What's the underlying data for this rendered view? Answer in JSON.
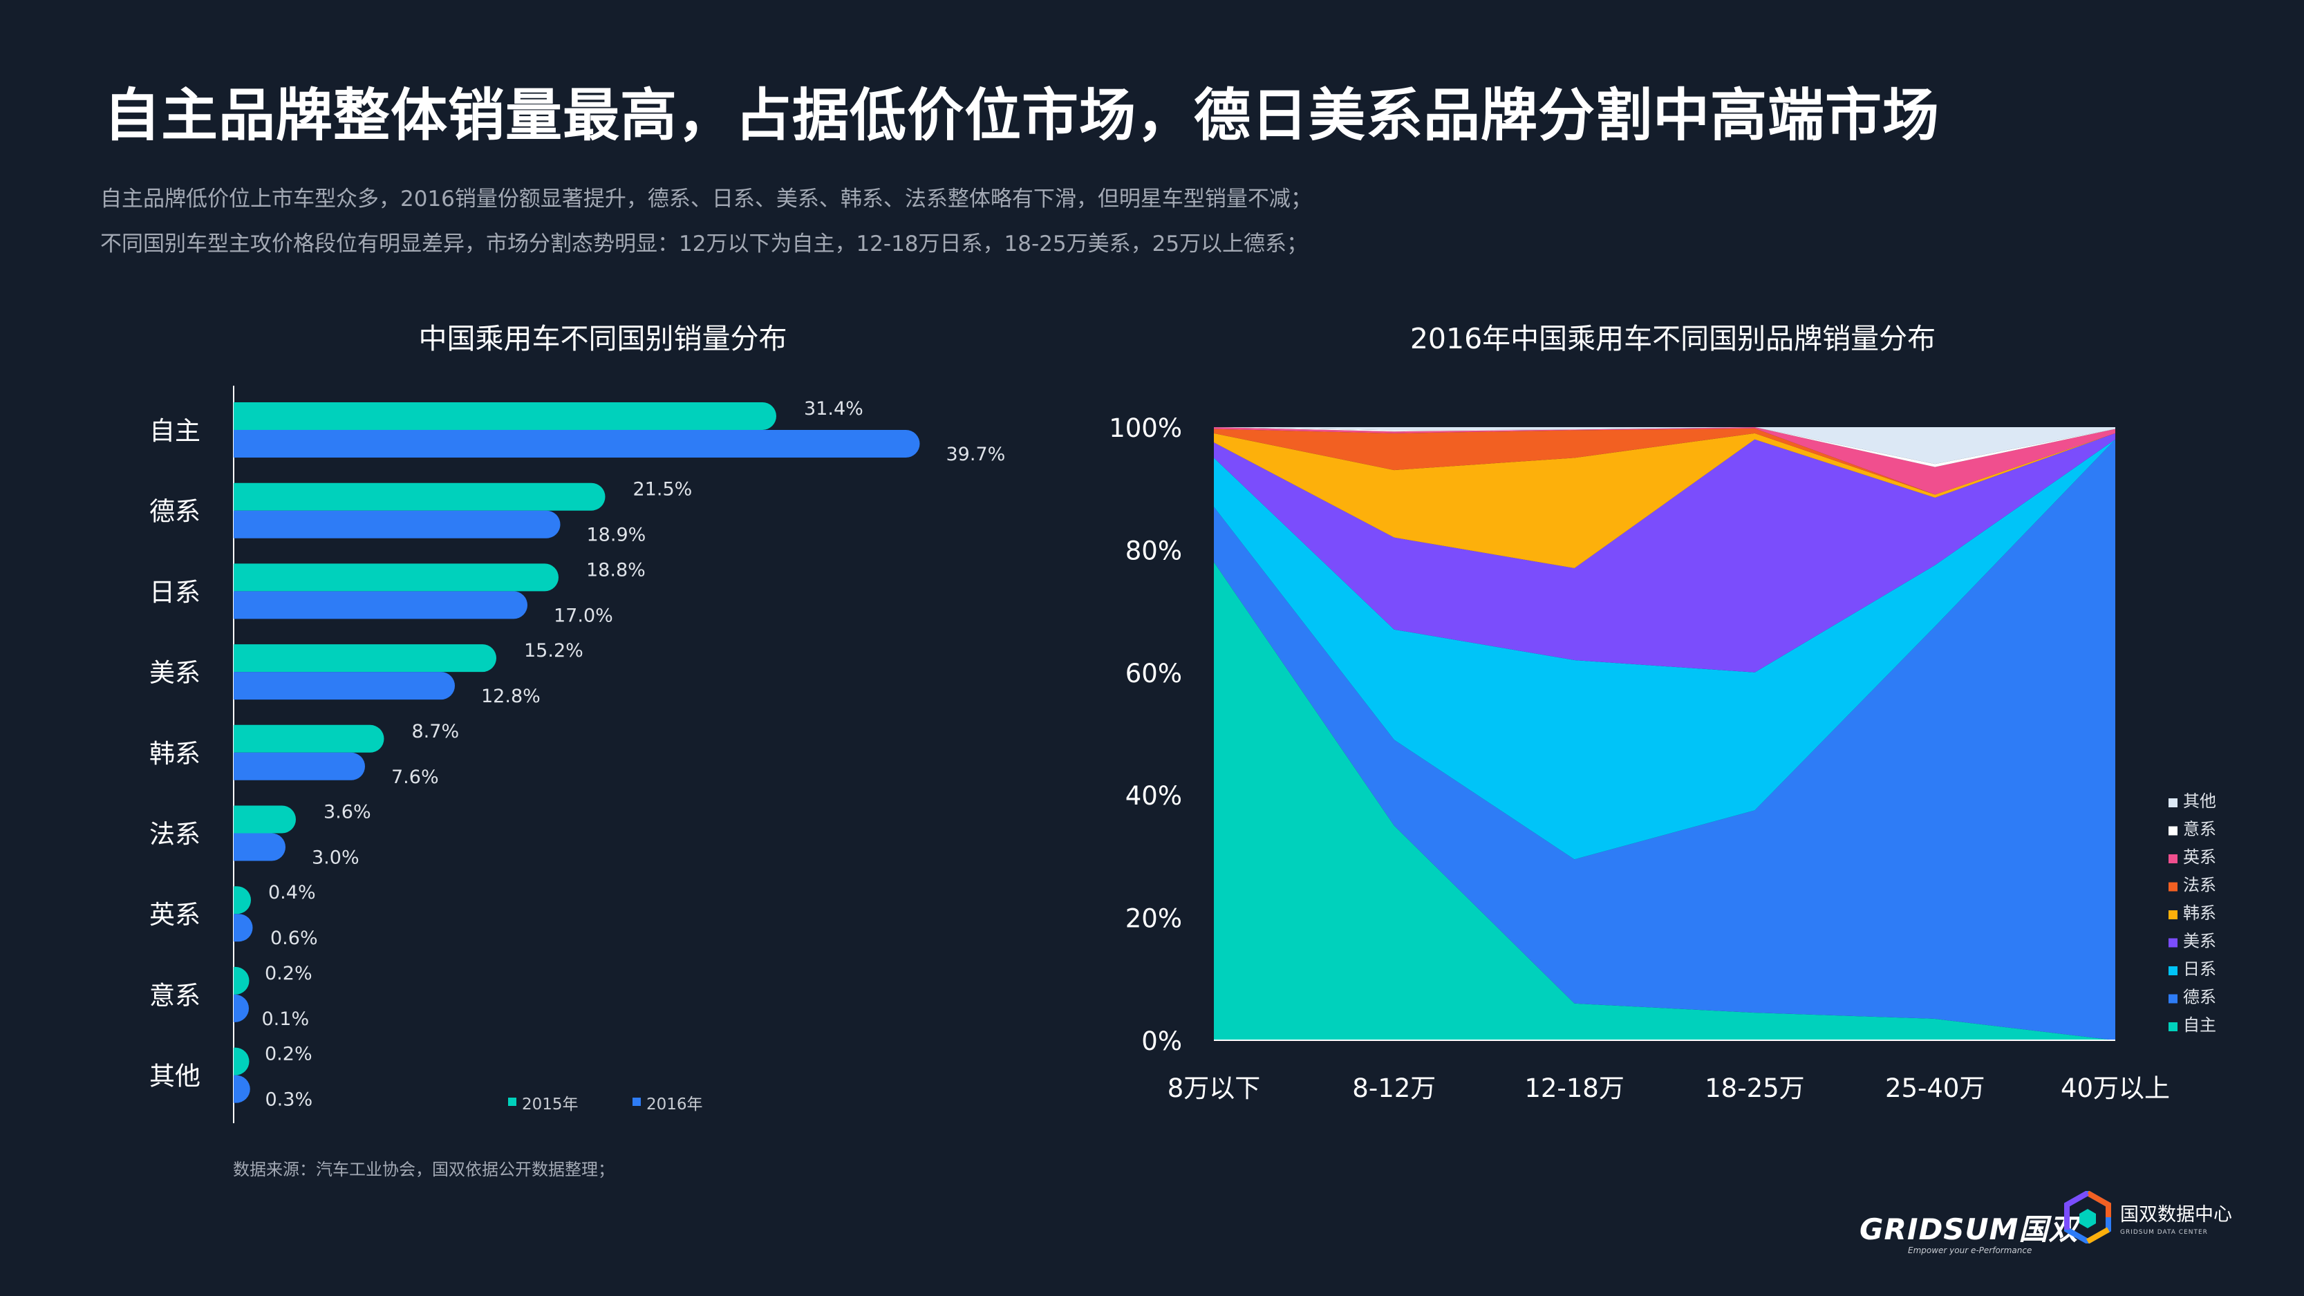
{
  "title": "自主品牌整体销量最高，占据低价位市场，德日美系品牌分割中高端市场",
  "subtitle_lines": [
    "自主品牌低价位上市车型众多，2016销量份额显著提升，德系、日系、美系、韩系、法系整体略有下滑，但明星车型销量不减；",
    "不同国别车型主攻价格段位有明显差异，市场分割态势明显：12万以下为自主，12-18万日系，18-25万美系，25万以上德系；"
  ],
  "source": "数据来源：汽车工业协会，国双依据公开数据整理；",
  "logos": {
    "brand": "GRIDSUM国双",
    "brand_tag": "Empower your e-Performance",
    "center": "国双数据中心",
    "center_sub": "GRIDSUM DATA CENTER"
  },
  "chart_data": [
    {
      "type": "bar",
      "orientation": "horizontal",
      "title": "中国乘用车不同国别销量分布",
      "categories": [
        "自主",
        "德系",
        "日系",
        "美系",
        "韩系",
        "法系",
        "英系",
        "意系",
        "其他"
      ],
      "series": [
        {
          "name": "2015年",
          "color": "#00d1bc",
          "values": [
            31.4,
            21.5,
            18.8,
            15.2,
            8.7,
            3.6,
            0.4,
            0.2,
            0.2
          ],
          "labels": [
            "31.4%",
            "21.5%",
            "18.8%",
            "15.2%",
            "8.7%",
            "3.6%",
            "0.4%",
            "0.2%",
            "0.2%"
          ]
        },
        {
          "name": "2016年",
          "color": "#2e7cf6",
          "values": [
            39.7,
            18.9,
            17.0,
            12.8,
            7.6,
            3.0,
            0.6,
            0.1,
            0.3
          ],
          "labels": [
            "39.7%",
            "18.9%",
            "17.0%",
            "12.8%",
            "7.6%",
            "3.0%",
            "0.6%",
            "0.1%",
            "0.3%"
          ]
        }
      ],
      "legend_position": "bottom"
    },
    {
      "type": "area",
      "stacked": "percent",
      "title": "2016年中国乘用车不同国别品牌销量分布",
      "categories": [
        "8万以下",
        "8-12万",
        "12-18万",
        "18-25万",
        "25-40万",
        "40万以上"
      ],
      "y_ticks": [
        "0%",
        "20%",
        "40%",
        "60%",
        "80%",
        "100%"
      ],
      "ylim": [
        0,
        100
      ],
      "series": [
        {
          "name": "自主",
          "color": "#00d1bc",
          "values": [
            78,
            35,
            6,
            4.5,
            3.5,
            0
          ]
        },
        {
          "name": "德系",
          "color": "#2e7cf6",
          "values": [
            9,
            14,
            23.5,
            33,
            64,
            98
          ]
        },
        {
          "name": "日系",
          "color": "#00c4f8",
          "values": [
            8,
            18,
            32.5,
            22.5,
            10,
            0
          ]
        },
        {
          "name": "美系",
          "color": "#7b4dfc",
          "values": [
            2.5,
            15,
            15,
            38,
            11,
            1
          ]
        },
        {
          "name": "韩系",
          "color": "#fdb00b",
          "values": [
            1.5,
            11,
            18,
            1,
            0.5,
            0
          ]
        },
        {
          "name": "法系",
          "color": "#f26022",
          "values": [
            0.7,
            6,
            4.5,
            0.8,
            0,
            0
          ]
        },
        {
          "name": "英系",
          "color": "#f04f8e",
          "values": [
            0.3,
            0.3,
            0.1,
            0.2,
            4.5,
            0.7
          ]
        },
        {
          "name": "意系",
          "color": "#ffffff",
          "values": [
            0,
            0.2,
            0,
            0,
            0.5,
            0
          ]
        },
        {
          "name": "其他",
          "color": "#dce8f5",
          "values": [
            0,
            0.5,
            0.4,
            0,
            6,
            0.3
          ]
        }
      ],
      "legend_order": [
        "其他",
        "意系",
        "英系",
        "法系",
        "韩系",
        "美系",
        "日系",
        "德系",
        "自主"
      ],
      "legend_position": "right"
    }
  ]
}
